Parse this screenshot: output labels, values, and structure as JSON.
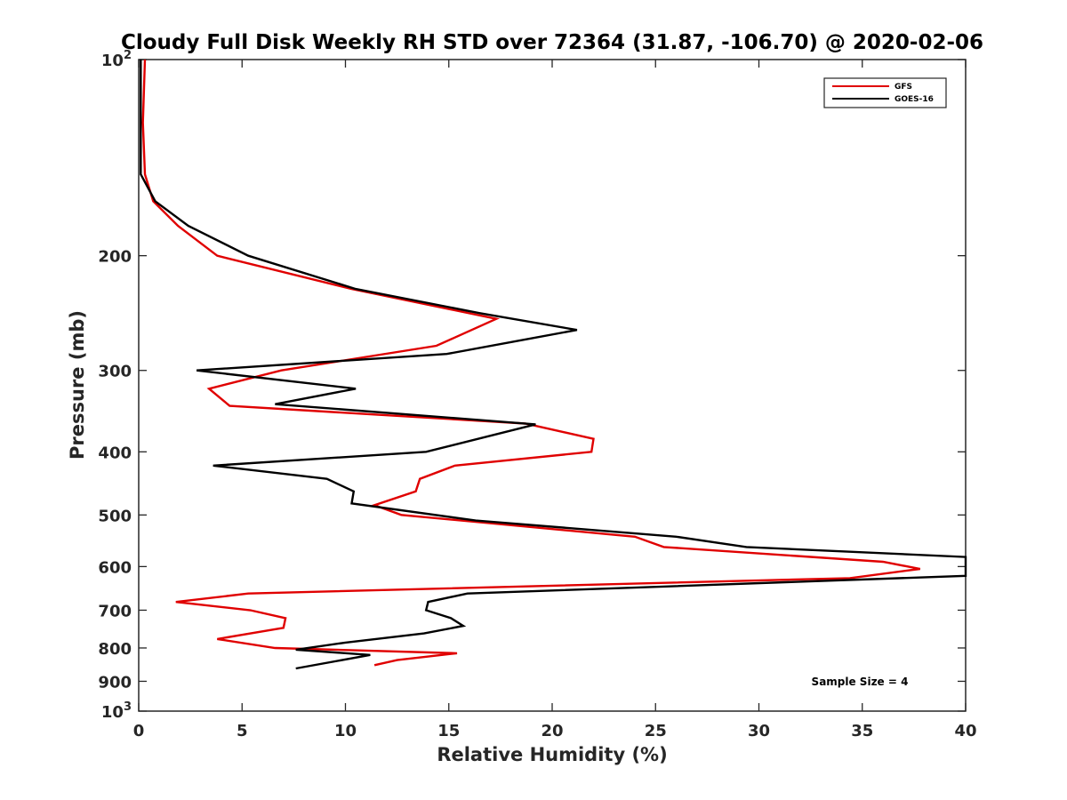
{
  "chart_data": {
    "type": "line",
    "title": "Cloudy Full Disk Weekly RH STD over 72364 (31.87, -106.70) @ 2020-02-06",
    "xlabel": "Relative Humidity (%)",
    "ylabel": "Pressure (mb)",
    "xlim": [
      0,
      40
    ],
    "ylim": [
      100,
      1000
    ],
    "y_scale": "log",
    "y_reversed": true,
    "x_ticks": [
      "0",
      "5",
      "10",
      "15",
      "20",
      "25",
      "30",
      "35",
      "40"
    ],
    "y_ticks": [
      {
        "value": 100,
        "label": "10",
        "sup": "2"
      },
      {
        "value": 200,
        "label": "200",
        "sup": ""
      },
      {
        "value": 300,
        "label": "300",
        "sup": ""
      },
      {
        "value": 400,
        "label": "400",
        "sup": ""
      },
      {
        "value": 500,
        "label": "500",
        "sup": ""
      },
      {
        "value": 600,
        "label": "600",
        "sup": ""
      },
      {
        "value": 700,
        "label": "700",
        "sup": ""
      },
      {
        "value": 800,
        "label": "800",
        "sup": ""
      },
      {
        "value": 900,
        "label": "900",
        "sup": ""
      },
      {
        "value": 1000,
        "label": "10",
        "sup": "3"
      }
    ],
    "grid": false,
    "legend_position": "top-right",
    "annotation": "Sample Size = 4",
    "series": [
      {
        "name": "GFS",
        "color": "#e00000",
        "points": [
          [
            0.3,
            100
          ],
          [
            0.2,
            125
          ],
          [
            0.3,
            150
          ],
          [
            0.7,
            165
          ],
          [
            1.9,
            180
          ],
          [
            3.8,
            200
          ],
          [
            10.3,
            225
          ],
          [
            17.3,
            250
          ],
          [
            14.4,
            275
          ],
          [
            6.9,
            300
          ],
          [
            3.4,
            320
          ],
          [
            4.4,
            340
          ],
          [
            18.7,
            362
          ],
          [
            22.0,
            382
          ],
          [
            21.9,
            400
          ],
          [
            15.3,
            420
          ],
          [
            13.6,
            440
          ],
          [
            13.4,
            460
          ],
          [
            11.4,
            483
          ],
          [
            12.7,
            500
          ],
          [
            24.0,
            540
          ],
          [
            25.4,
            560
          ],
          [
            36.0,
            590
          ],
          [
            37.8,
            605
          ],
          [
            34.4,
            625
          ],
          [
            5.3,
            660
          ],
          [
            1.8,
            680
          ],
          [
            5.4,
            700
          ],
          [
            7.1,
            720
          ],
          [
            7.0,
            745
          ],
          [
            3.8,
            775
          ],
          [
            6.6,
            800
          ],
          [
            15.4,
            815
          ],
          [
            12.5,
            835
          ],
          [
            11.4,
            850
          ]
        ]
      },
      {
        "name": "GOES-16",
        "color": "#000000",
        "points": [
          [
            0.1,
            100
          ],
          [
            0.1,
            125
          ],
          [
            0.1,
            150
          ],
          [
            0.8,
            165
          ],
          [
            2.4,
            180
          ],
          [
            5.3,
            200
          ],
          [
            10.5,
            225
          ],
          [
            16.5,
            245
          ],
          [
            21.2,
            260
          ],
          [
            14.9,
            283
          ],
          [
            2.8,
            300
          ],
          [
            10.5,
            320
          ],
          [
            6.6,
            338
          ],
          [
            19.2,
            363
          ],
          [
            13.9,
            400
          ],
          [
            3.6,
            420
          ],
          [
            9.1,
            440
          ],
          [
            10.4,
            460
          ],
          [
            10.3,
            480
          ],
          [
            16.3,
            510
          ],
          [
            26.0,
            540
          ],
          [
            29.4,
            560
          ],
          [
            40.0,
            580
          ],
          [
            40.0,
            620
          ],
          [
            15.9,
            660
          ],
          [
            14.0,
            680
          ],
          [
            13.9,
            700
          ],
          [
            15.1,
            720
          ],
          [
            15.7,
            740
          ],
          [
            13.8,
            760
          ],
          [
            10.0,
            785
          ],
          [
            7.6,
            805
          ],
          [
            11.2,
            820
          ],
          [
            7.6,
            860
          ]
        ]
      }
    ]
  }
}
